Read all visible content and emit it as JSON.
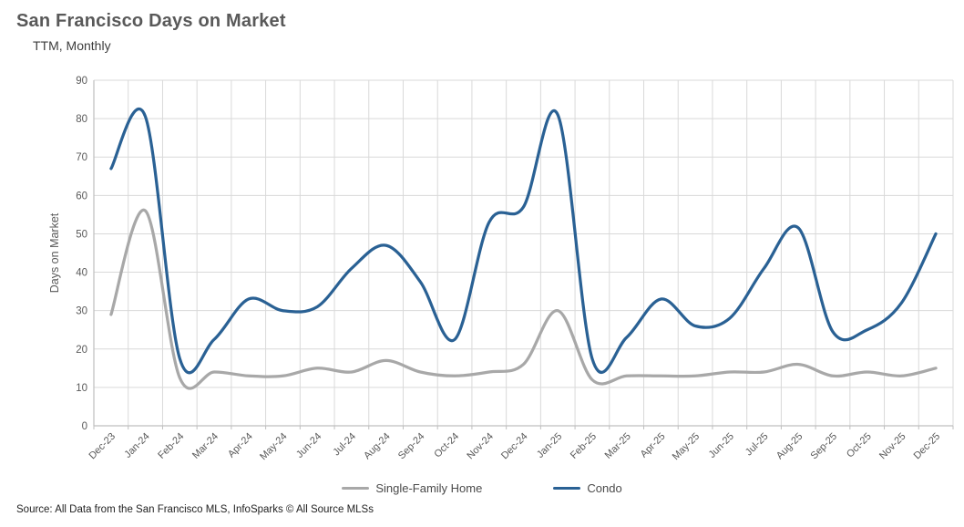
{
  "header": {
    "title": "San Francisco Days on Market",
    "subtitle": "TTM, Monthly"
  },
  "footer": {
    "source": "Source: All Data from the San Francisco MLS, InfoSparks © All Source MLSs"
  },
  "colors": {
    "condo_line": "#2a6194",
    "single_family_line": "#a8a8a8",
    "gridline": "#d9d9d9",
    "axis_line": "#bfbfbf",
    "title_text": "#595959",
    "axis_text": "#595959"
  },
  "chart_data": {
    "type": "line",
    "title": "San Francisco Days on Market",
    "subtitle": "TTM, Monthly",
    "xlabel": "",
    "ylabel": "Days on Market",
    "ylim": [
      0,
      90
    ],
    "ytick_step": 10,
    "grid": true,
    "smoothed_lines": true,
    "legend_position": "bottom",
    "x_tick_rotation": 45,
    "categories": [
      "Dec-23",
      "Jan-24",
      "Feb-24",
      "Mar-24",
      "Apr-24",
      "May-24",
      "Jun-24",
      "Jul-24",
      "Aug-24",
      "Sep-24",
      "Oct-24",
      "Nov-24",
      "Dec-24",
      "Jan-25",
      "Feb-25",
      "Mar-25",
      "Apr-25",
      "May-25",
      "Jun-25",
      "Jul-25",
      "Aug-25",
      "Sep-25",
      "Oct-25",
      "Nov-25",
      "Dec-25"
    ],
    "series": [
      {
        "name": "Single-Family Home",
        "color": "#a8a8a8",
        "values": [
          29,
          56,
          12.5,
          14,
          13,
          13,
          15,
          14,
          17,
          14,
          13,
          14,
          16,
          30,
          12,
          13,
          13,
          13,
          14,
          14,
          16,
          13,
          14,
          13,
          15
        ]
      },
      {
        "name": "Condo",
        "color": "#2a6194",
        "values": [
          67,
          80.5,
          17.5,
          22.5,
          33,
          30,
          31,
          41,
          47,
          37.5,
          22.5,
          53,
          57,
          81,
          17.5,
          23,
          33,
          26,
          28,
          41,
          51.5,
          24.5,
          25,
          32,
          50
        ]
      }
    ]
  }
}
